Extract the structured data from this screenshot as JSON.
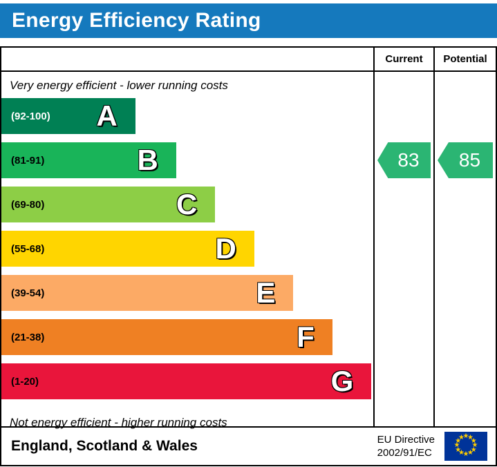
{
  "title_bar": {
    "title": "Energy Efficiency Rating",
    "bg_color": "#1579bd",
    "text_color": "#ffffff"
  },
  "table": {
    "columns": {
      "current": "Current",
      "potential": "Potential"
    },
    "top_caption": "Very energy efficient - lower running costs",
    "bottom_caption": "Not energy efficient - higher running costs"
  },
  "chart_data": {
    "type": "bar",
    "title": "Energy Efficiency Rating",
    "bands": [
      {
        "letter": "A",
        "range": "(92-100)",
        "min": 92,
        "max": 100,
        "color": "#008054",
        "range_text_color": "#ffffff",
        "width_pct": 36
      },
      {
        "letter": "B",
        "range": "(81-91)",
        "min": 81,
        "max": 91,
        "color": "#19b459",
        "range_text_color": "#000000",
        "width_pct": 47
      },
      {
        "letter": "C",
        "range": "(69-80)",
        "min": 69,
        "max": 80,
        "color": "#8dce46",
        "range_text_color": "#000000",
        "width_pct": 57.5
      },
      {
        "letter": "D",
        "range": "(55-68)",
        "min": 55,
        "max": 68,
        "color": "#ffd500",
        "range_text_color": "#000000",
        "width_pct": 68
      },
      {
        "letter": "E",
        "range": "(39-54)",
        "min": 39,
        "max": 54,
        "color": "#fcaa65",
        "range_text_color": "#000000",
        "width_pct": 78.5
      },
      {
        "letter": "F",
        "range": "(21-38)",
        "min": 21,
        "max": 38,
        "color": "#ef8023",
        "range_text_color": "#000000",
        "width_pct": 89
      },
      {
        "letter": "G",
        "range": "(1-20)",
        "min": 1,
        "max": 20,
        "color": "#e9153b",
        "range_text_color": "#000000",
        "width_pct": 99.5
      }
    ],
    "current": {
      "value": 83,
      "band": "B",
      "color": "#2bb573"
    },
    "potential": {
      "value": 85,
      "band": "B",
      "color": "#2bb573"
    }
  },
  "footer": {
    "region": "England, Scotland & Wales",
    "directive_line1": "EU Directive",
    "directive_line2": "2002/91/EC",
    "eu_flag": {
      "bg_color": "#003399",
      "star_color": "#ffcc00"
    }
  }
}
